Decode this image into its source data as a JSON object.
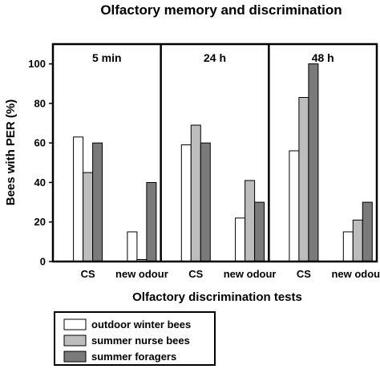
{
  "chart_data": {
    "type": "bar",
    "title": "Olfactory memory and discrimination",
    "xlabel": "Olfactory discrimination tests",
    "ylabel": "Bees with PER (%)",
    "ylim": [
      0,
      110
    ],
    "yticks": [
      0,
      20,
      40,
      60,
      80,
      100
    ],
    "grid": false,
    "legend_position": "bottom-left",
    "panels": [
      {
        "label": "5 min",
        "categories": [
          "CS",
          "new odour"
        ],
        "series": [
          {
            "name": "outdoor winter bees",
            "color": "#ffffff",
            "values": [
              63,
              15
            ]
          },
          {
            "name": "summer nurse bees",
            "color": "#bdbdbd",
            "values": [
              45,
              1
            ]
          },
          {
            "name": "summer foragers",
            "color": "#7a7a7a",
            "values": [
              60,
              40
            ]
          }
        ]
      },
      {
        "label": "24 h",
        "categories": [
          "CS",
          "new odour"
        ],
        "series": [
          {
            "name": "outdoor winter bees",
            "color": "#ffffff",
            "values": [
              59,
              22
            ]
          },
          {
            "name": "summer nurse bees",
            "color": "#bdbdbd",
            "values": [
              69,
              41
            ]
          },
          {
            "name": "summer foragers",
            "color": "#7a7a7a",
            "values": [
              60,
              30
            ]
          }
        ]
      },
      {
        "label": "48 h",
        "categories": [
          "CS",
          "new odour"
        ],
        "series": [
          {
            "name": "outdoor winter bees",
            "color": "#ffffff",
            "values": [
              56,
              15
            ]
          },
          {
            "name": "summer nurse bees",
            "color": "#bdbdbd",
            "values": [
              83,
              21
            ]
          },
          {
            "name": "summer foragers",
            "color": "#7a7a7a",
            "values": [
              100,
              30
            ]
          }
        ]
      }
    ],
    "legend": [
      {
        "name": "outdoor winter bees",
        "color": "#ffffff"
      },
      {
        "name": "summer nurse bees",
        "color": "#bdbdbd"
      },
      {
        "name": "summer foragers",
        "color": "#7a7a7a"
      }
    ]
  }
}
